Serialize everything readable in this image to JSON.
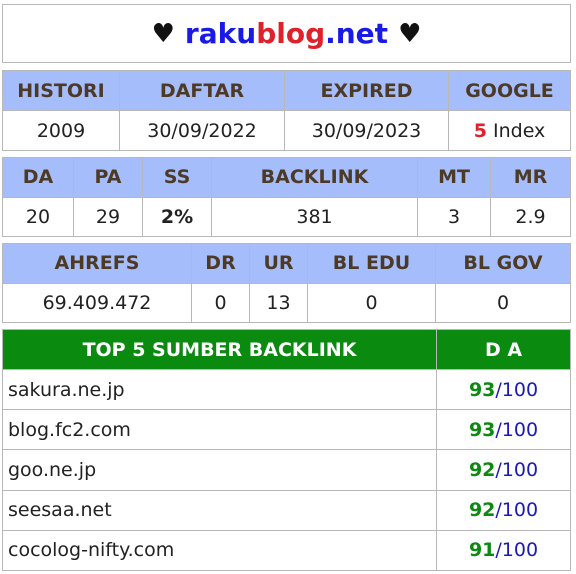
{
  "title": {
    "heart_left": "♥",
    "part_raku": "raku",
    "part_blog": "blog",
    "part_net": ".net",
    "heart_right": "♥"
  },
  "table1": {
    "headers": [
      "HISTORI",
      "DAFTAR",
      "EXPIRED",
      "GOOGLE"
    ],
    "values": {
      "histori": "2009",
      "daftar": "30/09/2022",
      "expired": "30/09/2023",
      "google_count": "5",
      "google_label": "Index"
    }
  },
  "table2": {
    "headers": [
      "DA",
      "PA",
      "SS",
      "BACKLINK",
      "MT",
      "MR"
    ],
    "values": [
      "20",
      "29",
      "2%",
      "381",
      "3",
      "2.9"
    ]
  },
  "table3": {
    "headers": [
      "AHREFS",
      "DR",
      "UR",
      "BL EDU",
      "BL GOV"
    ],
    "values": [
      "69.409.472",
      "0",
      "13",
      "0",
      "0"
    ]
  },
  "top_backlinks": {
    "header_source": "TOP 5 SUMBER BACKLINK",
    "header_da": "D A",
    "rows": [
      {
        "site": "sakura.ne.jp",
        "da": "93",
        "max": "/100"
      },
      {
        "site": "blog.fc2.com",
        "da": "93",
        "max": "/100"
      },
      {
        "site": "goo.ne.jp",
        "da": "92",
        "max": "/100"
      },
      {
        "site": "seesaa.net",
        "da": "92",
        "max": "/100"
      },
      {
        "site": "cocolog-nifty.com",
        "da": "91",
        "max": "/100"
      }
    ]
  },
  "colors": {
    "header_blue": "#a6bdfb",
    "header_green": "#0b8a10",
    "accent_red": "#e0202a",
    "accent_blue": "#1a1ae6"
  }
}
